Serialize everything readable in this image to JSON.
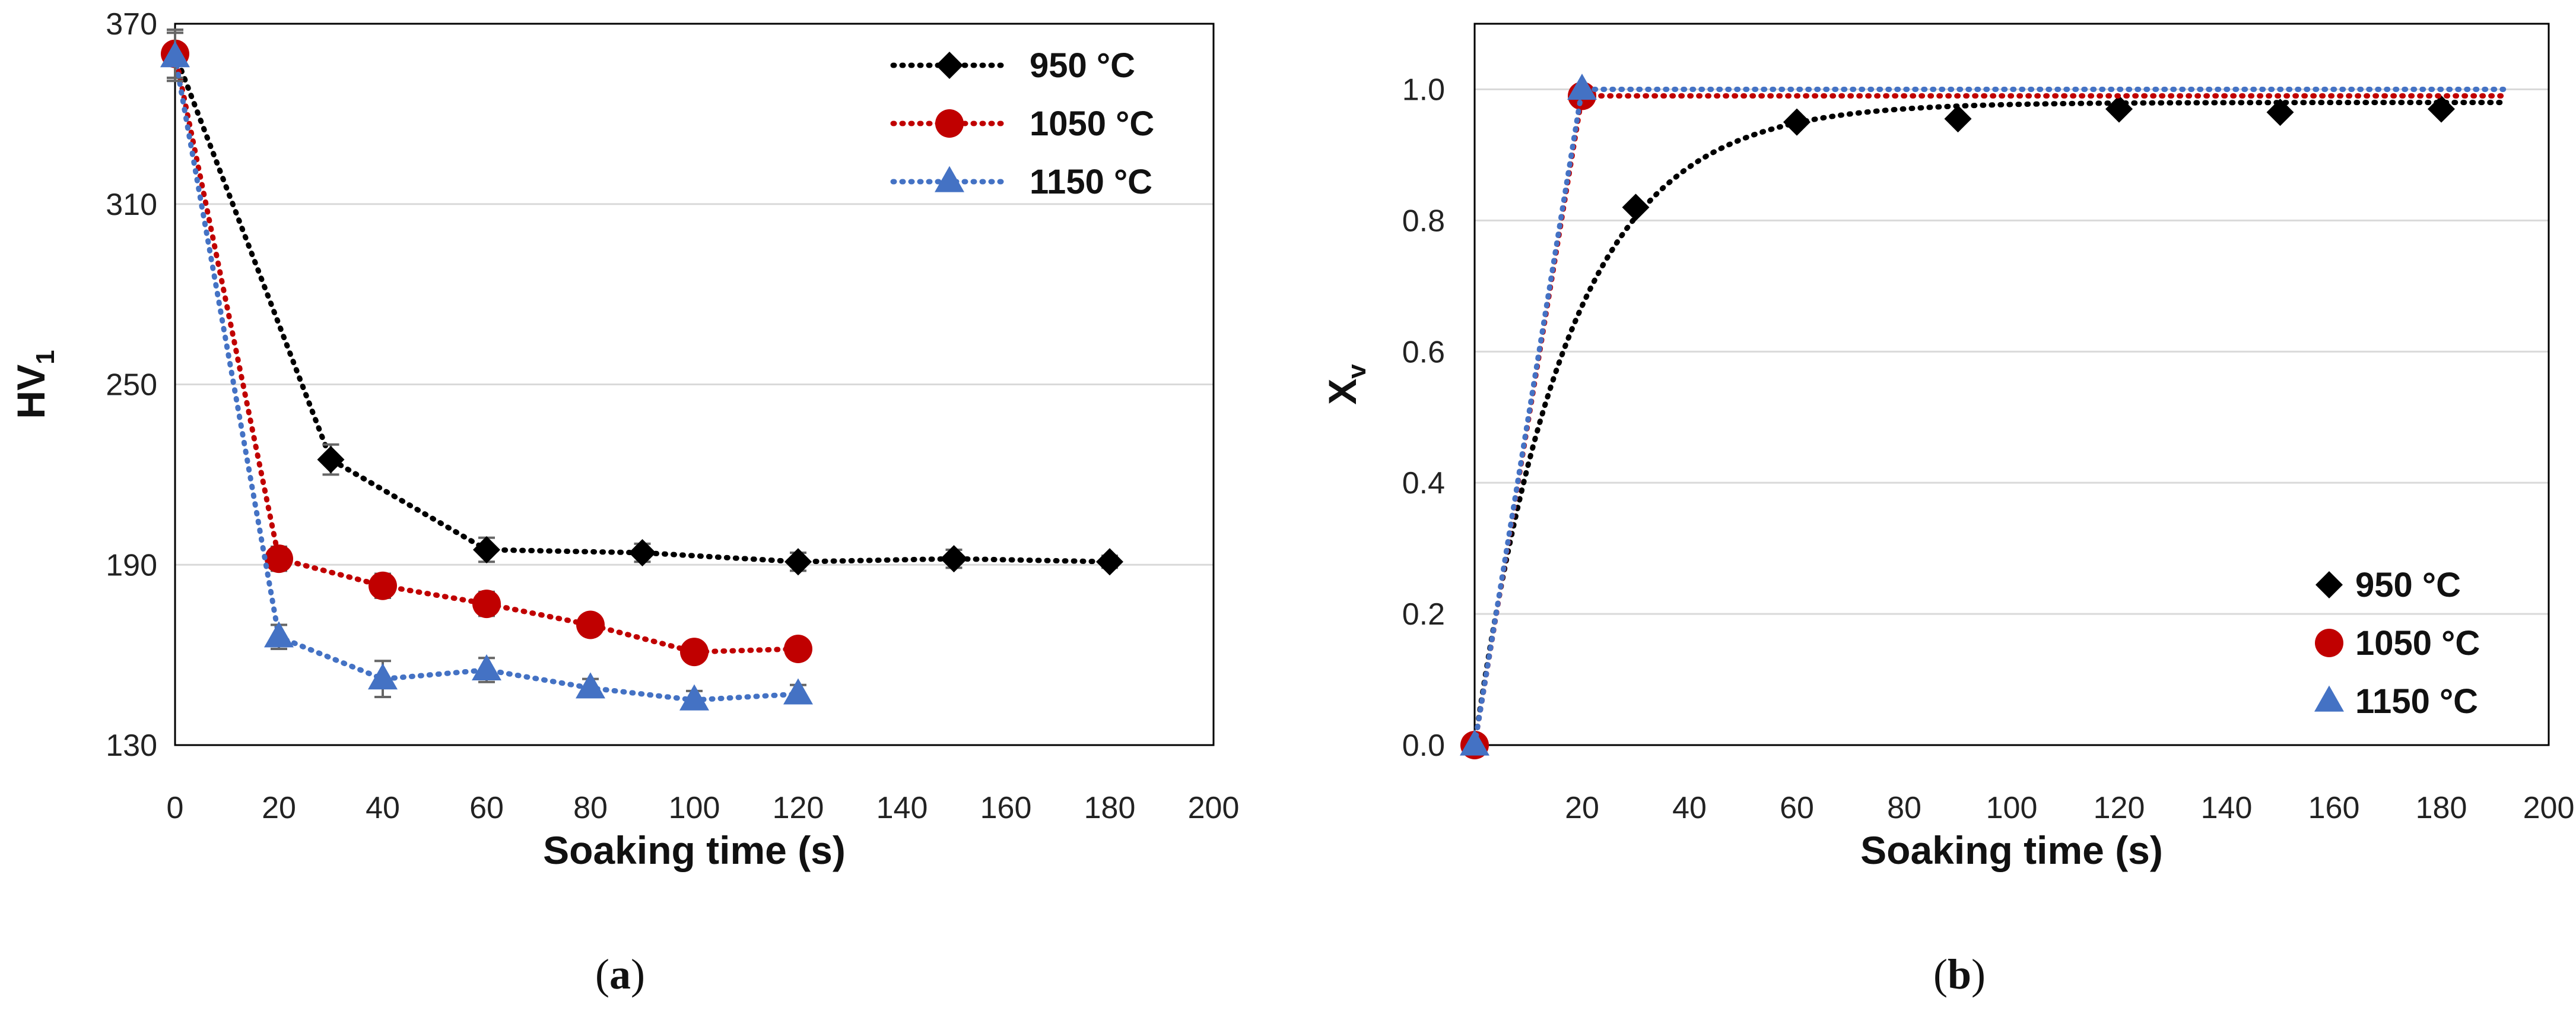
{
  "chart_data": [
    {
      "id": "a",
      "type": "line",
      "panel_label": "a",
      "xlabel": "Soaking time (s)",
      "ylabel_main": "HV",
      "ylabel_sub": "1",
      "xlim": [
        0,
        200
      ],
      "ylim": [
        130,
        370
      ],
      "xticks": [
        0,
        20,
        40,
        60,
        80,
        100,
        120,
        140,
        160,
        180,
        200
      ],
      "yticks": [
        130,
        190,
        250,
        310,
        370
      ],
      "grid": "horizontal",
      "legend_position": "top-right",
      "series": [
        {
          "name": "950 °C",
          "color": "#000000",
          "marker": "diamond",
          "x": [
            0,
            30,
            60,
            90,
            120,
            150,
            180
          ],
          "y": [
            360,
            225,
            195,
            194,
            191,
            192,
            191
          ],
          "yerr": [
            8,
            5,
            4,
            3,
            3,
            3,
            2
          ]
        },
        {
          "name": "1050 °C",
          "color": "#c00000",
          "marker": "circle",
          "x": [
            0,
            20,
            40,
            60,
            80,
            100,
            120
          ],
          "y": [
            360,
            192,
            183,
            177,
            170,
            161,
            162
          ],
          "yerr": [
            8,
            4,
            4,
            4,
            3,
            3,
            3
          ]
        },
        {
          "name": "1150 °C",
          "color": "#4472c4",
          "marker": "triangle",
          "x": [
            0,
            20,
            40,
            60,
            80,
            100,
            120
          ],
          "y": [
            359,
            166,
            152,
            155,
            149,
            145,
            147
          ],
          "yerr": [
            8,
            4,
            6,
            4,
            3,
            3,
            3
          ]
        }
      ]
    },
    {
      "id": "b",
      "type": "scatter",
      "panel_label": "b",
      "xlabel": "Soaking time (s)",
      "ylabel_main": "X",
      "ylabel_sub": "v",
      "xlim": [
        0,
        200
      ],
      "ylim": [
        0,
        1.1
      ],
      "xticks": [
        20,
        40,
        60,
        80,
        100,
        120,
        140,
        160,
        180,
        200
      ],
      "yticks": [
        0.0,
        0.2,
        0.4,
        0.6,
        0.8,
        1.0
      ],
      "ytick_labels": [
        "0.0",
        "0.2",
        "0.4",
        "0.6",
        "0.8",
        "1.0"
      ],
      "grid": "horizontal",
      "legend_position": "bottom-right",
      "series": [
        {
          "name": "950 °C",
          "color": "#000000",
          "marker": "diamond",
          "x": [
            0,
            30,
            60,
            90,
            120,
            150,
            180
          ],
          "y": [
            0.0,
            0.82,
            0.95,
            0.955,
            0.97,
            0.965,
            0.97
          ],
          "fit": {
            "kind": "exponential",
            "asymptote": 0.98,
            "rate": 0.0575,
            "x_max": 192
          }
        },
        {
          "name": "1050 °C",
          "color": "#c00000",
          "marker": "circle",
          "x": [
            0,
            20
          ],
          "y": [
            0.0,
            0.99
          ],
          "fit": {
            "kind": "step",
            "asymptote": 0.99,
            "x_max": 192
          }
        },
        {
          "name": "1150 °C",
          "color": "#4472c4",
          "marker": "triangle",
          "x": [
            0,
            20
          ],
          "y": [
            0.0,
            1.0
          ],
          "fit": {
            "kind": "step",
            "asymptote": 1.0,
            "x_max": 192
          }
        }
      ]
    }
  ]
}
